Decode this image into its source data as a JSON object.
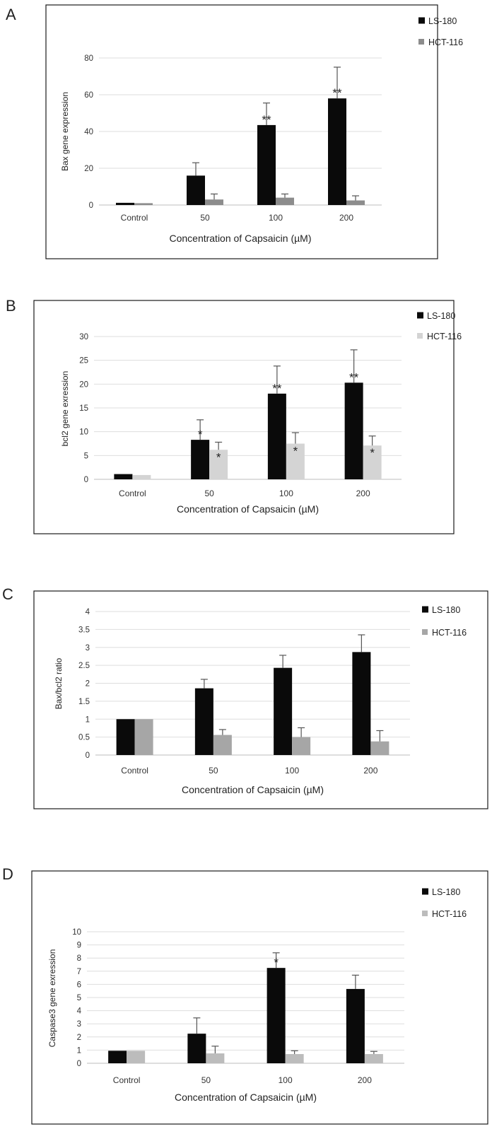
{
  "chart_data": [
    {
      "panel": "A",
      "type": "bar",
      "title": "",
      "xlabel": "Concentration of Capsaicin (µM)",
      "ylabel": "Bax gene expression",
      "categories": [
        "Control",
        "50",
        "100",
        "200"
      ],
      "ylim": [
        0,
        80
      ],
      "yticks": [
        "0",
        "20",
        "40",
        "60",
        "80"
      ],
      "gridlines": true,
      "legend_position": "top-right",
      "series": [
        {
          "name": "LS-180",
          "color": "#0a0a0a",
          "values": [
            1.2,
            16,
            43.5,
            58
          ],
          "errors": [
            0,
            7,
            12,
            17
          ],
          "significance": [
            "",
            "",
            "**",
            "**"
          ]
        },
        {
          "name": "HCT-116",
          "color": "#8c8c8c",
          "values": [
            1,
            3,
            4,
            2.5
          ],
          "errors": [
            0,
            3,
            2,
            2.5
          ],
          "significance": [
            "",
            "",
            "",
            ""
          ]
        }
      ]
    },
    {
      "panel": "B",
      "type": "bar",
      "title": "",
      "xlabel": "Concentration of Capsaicin (µM)",
      "ylabel": "bcl2 gene exression",
      "categories": [
        "Control",
        "50",
        "100",
        "200"
      ],
      "ylim": [
        0,
        30
      ],
      "yticks": [
        "0",
        "5",
        "10",
        "15",
        "20",
        "25",
        "30"
      ],
      "gridlines": true,
      "legend_position": "top-right",
      "series": [
        {
          "name": "LS-180",
          "color": "#0a0a0a",
          "values": [
            1.1,
            8.3,
            18,
            20.3
          ],
          "errors": [
            0,
            4.2,
            5.8,
            6.9
          ],
          "significance": [
            "",
            "*",
            "**",
            "**"
          ]
        },
        {
          "name": "HCT-116",
          "color": "#d4d4d4",
          "values": [
            0.9,
            6.2,
            7.5,
            7.1
          ],
          "errors": [
            0,
            1.6,
            2.3,
            2
          ],
          "significance": [
            "",
            "*",
            "*",
            "*"
          ]
        }
      ]
    },
    {
      "panel": "C",
      "type": "bar",
      "title": "",
      "xlabel": "Concentration of Capsaicin (µM)",
      "ylabel": "Bax/bcl2 ratio",
      "categories": [
        "Control",
        "50",
        "100",
        "200"
      ],
      "ylim": [
        0,
        4
      ],
      "yticks": [
        "0",
        "0.5",
        "1",
        "1.5",
        "2",
        "2.5",
        "3",
        "3.5",
        "4"
      ],
      "gridlines": true,
      "legend_position": "top-right",
      "series": [
        {
          "name": "LS-180",
          "color": "#0a0a0a",
          "values": [
            1,
            1.86,
            2.43,
            2.87
          ],
          "errors": [
            0,
            0.25,
            0.35,
            0.48
          ],
          "significance": [
            "",
            "",
            "",
            ""
          ]
        },
        {
          "name": "HCT-116",
          "color": "#a6a6a6",
          "values": [
            1,
            0.56,
            0.5,
            0.38
          ],
          "errors": [
            0,
            0.15,
            0.26,
            0.3
          ],
          "significance": [
            "",
            "",
            "",
            ""
          ]
        }
      ]
    },
    {
      "panel": "D",
      "type": "bar",
      "title": "",
      "xlabel": "Concentration of Capsaicin (µM)",
      "ylabel": "Caspase3 gene exression",
      "categories": [
        "Control",
        "50",
        "100",
        "200"
      ],
      "ylim": [
        0,
        10
      ],
      "yticks": [
        "0",
        "1",
        "2",
        "3",
        "4",
        "5",
        "6",
        "7",
        "8",
        "9",
        "10"
      ],
      "gridlines": true,
      "legend_position": "top-right",
      "series": [
        {
          "name": "LS-180",
          "color": "#0a0a0a",
          "values": [
            0.95,
            2.25,
            7.25,
            5.65
          ],
          "errors": [
            0,
            1.2,
            1.15,
            1.05
          ],
          "significance": [
            "",
            "",
            "*",
            ""
          ]
        },
        {
          "name": "HCT-116",
          "color": "#bcbcbc",
          "values": [
            0.95,
            0.75,
            0.7,
            0.7
          ],
          "errors": [
            0,
            0.55,
            0.25,
            0.2
          ],
          "significance": [
            "",
            "",
            "",
            ""
          ]
        }
      ]
    }
  ]
}
